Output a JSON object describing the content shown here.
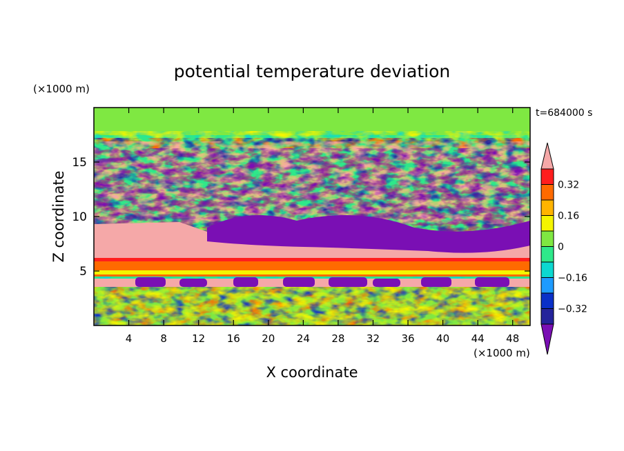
{
  "chart_data": {
    "type": "heatmap",
    "title": "potential temperature deviation",
    "xlabel": "X coordinate",
    "ylabel": "Z coordinate",
    "x_unit": "(×1000 m)",
    "y_unit": "(×1000 m)",
    "time_label": "t=684000 s",
    "xlim": [
      0,
      50
    ],
    "ylim": [
      0,
      20
    ],
    "x_ticks": [
      4,
      8,
      12,
      16,
      20,
      24,
      28,
      32,
      36,
      40,
      44,
      48
    ],
    "y_ticks": [
      5,
      10,
      15
    ],
    "colorbar": {
      "levels": [
        -0.4,
        -0.32,
        -0.24,
        -0.16,
        -0.08,
        0,
        0.08,
        0.16,
        0.24,
        0.32,
        0.4
      ],
      "tick_labels": [
        "0.32",
        "0.16",
        "0",
        "−0.16",
        "−0.32"
      ],
      "tick_values": [
        0.32,
        0.16,
        0,
        -0.16,
        -0.32
      ],
      "colors": [
        "#7a0fb4",
        "#24239b",
        "#0a30c8",
        "#1e9bff",
        "#0cd8d0",
        "#2ee88a",
        "#7fe842",
        "#f5f500",
        "#ffb400",
        "#ff6a00",
        "#ff1e1e",
        "#f5a8a8"
      ]
    }
  }
}
